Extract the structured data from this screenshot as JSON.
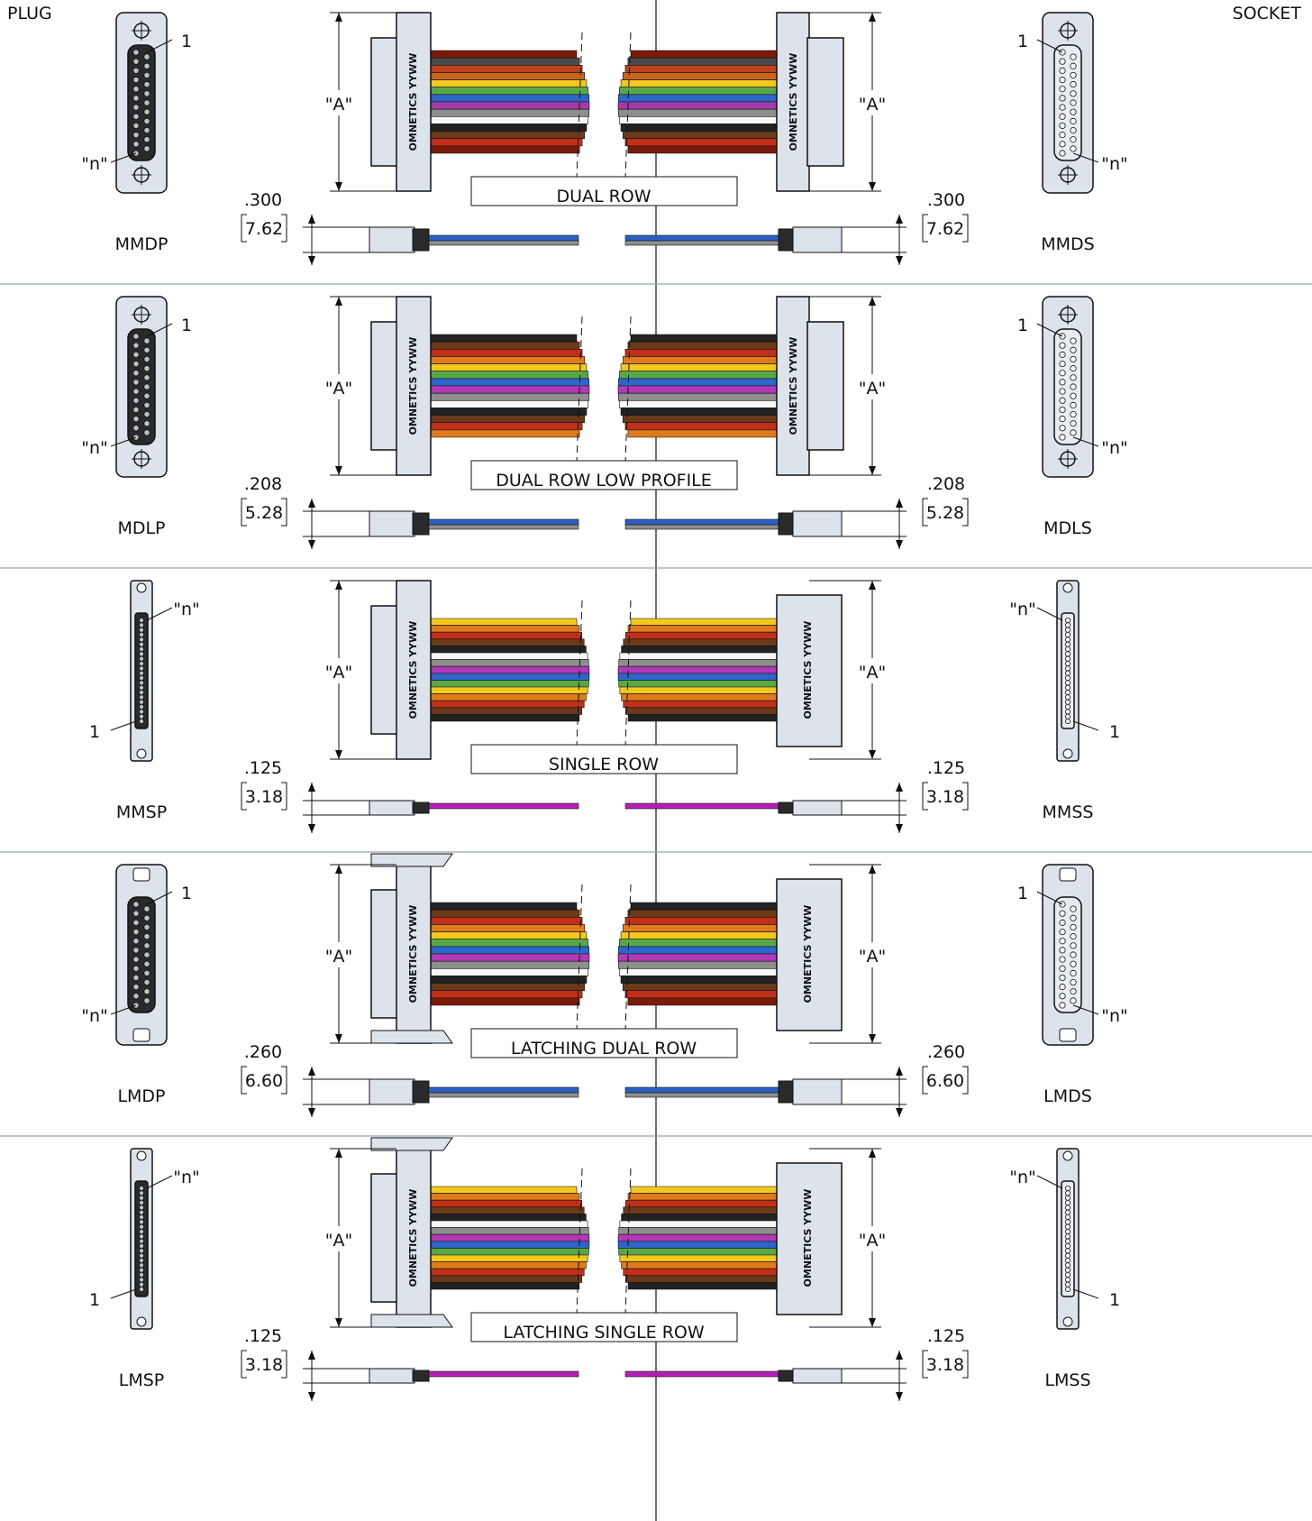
{
  "header": {
    "plug": "PLUG",
    "socket": "SOCKET"
  },
  "brand_text": "OMNETICS YYWW",
  "label_A": "\"A\"",
  "pin_first": "1",
  "pin_last": "\"n\"",
  "rows": [
    {
      "id": "dual-row",
      "title": "DUAL ROW",
      "plug_code": "MMDP",
      "socket_code": "MMDS",
      "dim_in": ".300",
      "dim_mm": "7.62",
      "type": "dual",
      "wire_colors": [
        "#7a1a0a",
        "#4a4a4a",
        "#b8431c",
        "#c8641a",
        "#f2c81e",
        "#58a84a",
        "#2d66c9",
        "#a23aa8",
        "#8e8e8e",
        "#f7f7f7",
        "#222222",
        "#6b3a1a",
        "#c03018",
        "#7a1a0a"
      ],
      "side_color": "#2d5fc4"
    },
    {
      "id": "dual-row-low-profile",
      "title": "DUAL ROW LOW PROFILE",
      "plug_code": "MDLP",
      "socket_code": "MDLS",
      "dim_in": ".208",
      "dim_mm": "5.28",
      "type": "dual",
      "wire_colors": [
        "#222222",
        "#6b3a1a",
        "#c03018",
        "#e07a1a",
        "#f2c81e",
        "#58a84a",
        "#2d66c9",
        "#b23ab8",
        "#8e8e8e",
        "#f7f7f7",
        "#222222",
        "#6b3a1a",
        "#c03018",
        "#e07a1a"
      ],
      "side_color": "#2d5fc4"
    },
    {
      "id": "single-row",
      "title": "SINGLE ROW",
      "plug_code": "MMSP",
      "socket_code": "MMSS",
      "dim_in": ".125",
      "dim_mm": "3.18",
      "type": "single",
      "wire_colors": [
        "#f2c81e",
        "#e07a1a",
        "#c03018",
        "#6b3a1a",
        "#222222",
        "#f7f7f7",
        "#8e8e8e",
        "#b23ab8",
        "#2d66c9",
        "#58a84a",
        "#f2c81e",
        "#e07a1a",
        "#c03018",
        "#6b3a1a",
        "#222222"
      ],
      "side_color": "#b61fb6"
    },
    {
      "id": "latching-dual-row",
      "title": "LATCHING DUAL ROW",
      "plug_code": "LMDP",
      "socket_code": "LMDS",
      "dim_in": ".260",
      "dim_mm": "6.60",
      "type": "latching-dual",
      "wire_colors": [
        "#222222",
        "#6b3a1a",
        "#c03018",
        "#e07a1a",
        "#f2c81e",
        "#58a84a",
        "#2d66c9",
        "#b23ab8",
        "#8e8e8e",
        "#f7f7f7",
        "#222222",
        "#6b3a1a",
        "#c03018",
        "#7a1a0a"
      ],
      "side_color": "#2d5fc4"
    },
    {
      "id": "latching-single-row",
      "title": "LATCHING SINGLE ROW",
      "plug_code": "LMSP",
      "socket_code": "LMSS",
      "dim_in": ".125",
      "dim_mm": "3.18",
      "type": "latching-single",
      "wire_colors": [
        "#f2c81e",
        "#e07a1a",
        "#c03018",
        "#6b3a1a",
        "#222222",
        "#f7f7f7",
        "#8e8e8e",
        "#b23ab8",
        "#2d66c9",
        "#58a84a",
        "#f2c81e",
        "#e07a1a",
        "#c03018",
        "#6b3a1a",
        "#222222"
      ],
      "side_color": "#b61fb6"
    }
  ]
}
